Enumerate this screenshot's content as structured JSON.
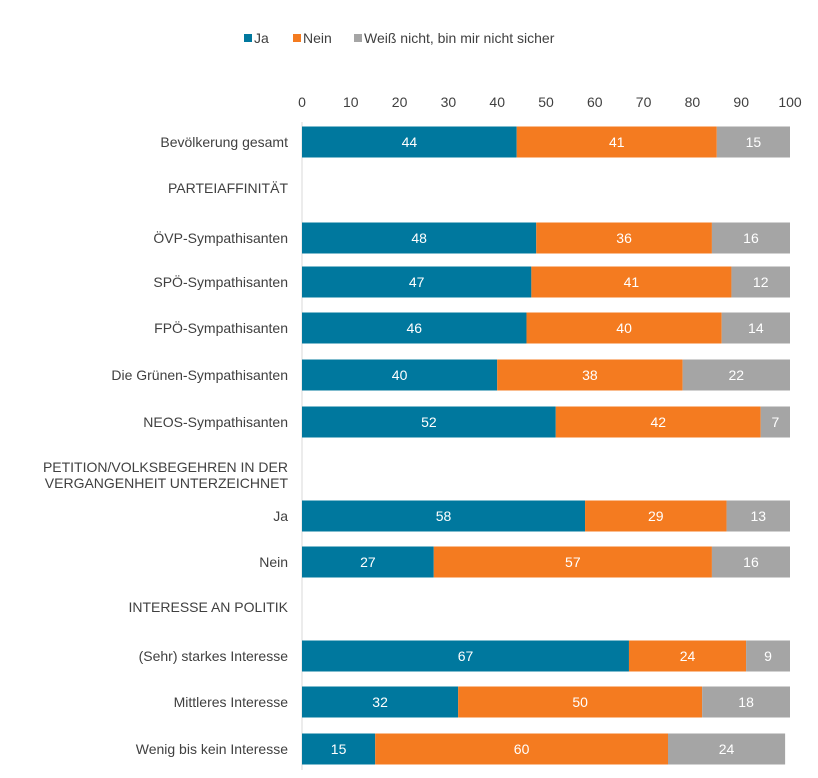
{
  "chart_data": {
    "type": "bar",
    "orientation": "horizontal",
    "stacked": true,
    "legend_position": "top",
    "xlim": [
      0,
      100
    ],
    "x_ticks": [
      "0",
      "10",
      "20",
      "30",
      "40",
      "50",
      "60",
      "70",
      "80",
      "90",
      "100"
    ],
    "grid": false,
    "series": [
      {
        "name": "Ja",
        "color": "#00789e"
      },
      {
        "name": "Nein",
        "color": "#f47b20"
      },
      {
        "name": "Weiß nicht, bin mir nicht sicher",
        "color": "#a5a5a5"
      }
    ],
    "rows": [
      {
        "kind": "bar",
        "label": "Bevölkerung gesamt",
        "values": [
          44,
          41,
          15
        ]
      },
      {
        "kind": "header",
        "label": "PARTEIAFFINITÄT",
        "lines": [
          "PARTEIAFFINITÄT"
        ]
      },
      {
        "kind": "bar",
        "label": "ÖVP-Sympathisanten",
        "values": [
          48,
          36,
          16
        ]
      },
      {
        "kind": "bar",
        "label": "SPÖ-Sympathisanten",
        "values": [
          47,
          41,
          12
        ]
      },
      {
        "kind": "bar",
        "label": "FPÖ-Sympathisanten",
        "values": [
          46,
          40,
          14
        ]
      },
      {
        "kind": "bar",
        "label": "Die Grünen-Sympathisanten",
        "values": [
          40,
          38,
          22
        ]
      },
      {
        "kind": "bar",
        "label": "NEOS-Sympathisanten",
        "values": [
          52,
          42,
          7
        ]
      },
      {
        "kind": "header",
        "label": "PETITION/VOLKSBEGEHREN IN DER VERGANGENHEIT UNTERZEICHNET",
        "lines": [
          "PETITION/VOLKSBEGEHREN IN DER",
          "VERGANGENHEIT UNTERZEICHNET"
        ]
      },
      {
        "kind": "bar",
        "label": "Ja",
        "values": [
          58,
          29,
          13
        ]
      },
      {
        "kind": "bar",
        "label": "Nein",
        "values": [
          27,
          57,
          16
        ]
      },
      {
        "kind": "header",
        "label": "INTERESSE AN POLITIK",
        "lines": [
          "INTERESSE AN POLITIK"
        ]
      },
      {
        "kind": "bar",
        "label": "(Sehr) starkes Interesse",
        "values": [
          67,
          24,
          9
        ]
      },
      {
        "kind": "bar",
        "label": "Mittleres Interesse",
        "values": [
          32,
          50,
          18
        ]
      },
      {
        "kind": "bar",
        "label": "Wenig bis kein Interesse",
        "values": [
          15,
          60,
          24
        ]
      }
    ]
  }
}
